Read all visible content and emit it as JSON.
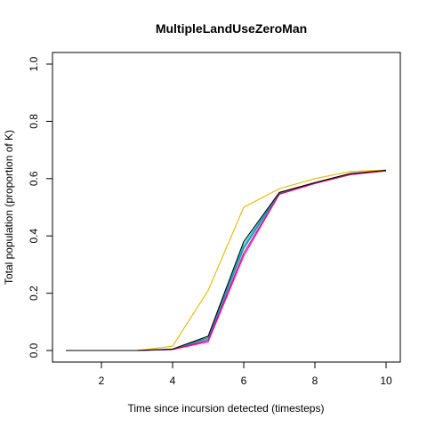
{
  "chart_data": {
    "type": "line",
    "title": "MultipleLandUseZeroMan",
    "xlabel": "Time since incursion detected (timesteps)",
    "ylabel": "Total population (proportion of K)",
    "xlim": [
      1,
      10
    ],
    "ylim": [
      0,
      1
    ],
    "x_ticks": [
      2,
      4,
      6,
      8,
      10
    ],
    "y_ticks": [
      0.0,
      0.2,
      0.4,
      0.6,
      0.8,
      1.0
    ],
    "y_tick_labels": [
      "0.0",
      "0.2",
      "0.4",
      "0.6",
      "0.8",
      "1.0"
    ],
    "grid": false,
    "legend": "none",
    "x": [
      1,
      2,
      3,
      4,
      5,
      6,
      7,
      8,
      9,
      10
    ],
    "series": [
      {
        "color": "#E6B800",
        "values": [
          0,
          0,
          0,
          0.015,
          0.21,
          0.5,
          0.565,
          0.6,
          0.625,
          0.63
        ]
      },
      {
        "color": "#00CED1",
        "values": [
          0,
          0,
          0,
          0.004,
          0.045,
          0.37,
          0.55,
          0.585,
          0.617,
          0.628
        ]
      },
      {
        "color": "#2E8B57",
        "values": [
          0,
          0,
          0,
          0.004,
          0.045,
          0.36,
          0.55,
          0.585,
          0.616,
          0.628
        ]
      },
      {
        "color": "#1E90FF",
        "values": [
          0,
          0,
          0,
          0.004,
          0.04,
          0.355,
          0.548,
          0.585,
          0.615,
          0.628
        ]
      },
      {
        "color": "#FF00FF",
        "values": [
          0,
          0,
          0,
          0.003,
          0.03,
          0.33,
          0.545,
          0.583,
          0.614,
          0.627
        ]
      },
      {
        "color": "#DC143C",
        "values": [
          0,
          0,
          0,
          0.003,
          0.035,
          0.34,
          0.546,
          0.584,
          0.614,
          0.627
        ]
      },
      {
        "color": "#000000",
        "values": [
          0,
          0,
          0,
          0.005,
          0.05,
          0.38,
          0.552,
          0.586,
          0.618,
          0.629
        ]
      }
    ]
  }
}
